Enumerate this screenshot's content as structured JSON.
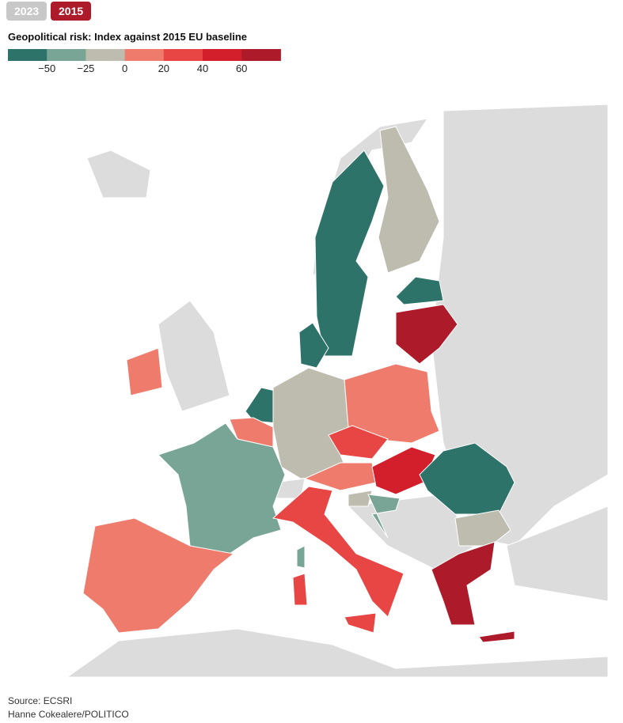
{
  "tabs": [
    "2023",
    "2015"
  ],
  "active_tab": 1,
  "chart_data": {
    "type": "choropleth",
    "title": "Geopolitical risk: Index against 2015 EU baseline",
    "legend_colors": [
      "#2e7369",
      "#78a596",
      "#bdbcaf",
      "#ef7b6c",
      "#e84545",
      "#d21f2b",
      "#ad1a2a"
    ],
    "legend_ticks": [
      {
        "value": -50,
        "label": "−50"
      },
      {
        "value": -25,
        "label": "−25"
      },
      0,
      20,
      40,
      60
    ]
  },
  "footer": {
    "source": "Source: ECSRI",
    "credit": "Hanne Cokealere/POLITICO"
  }
}
